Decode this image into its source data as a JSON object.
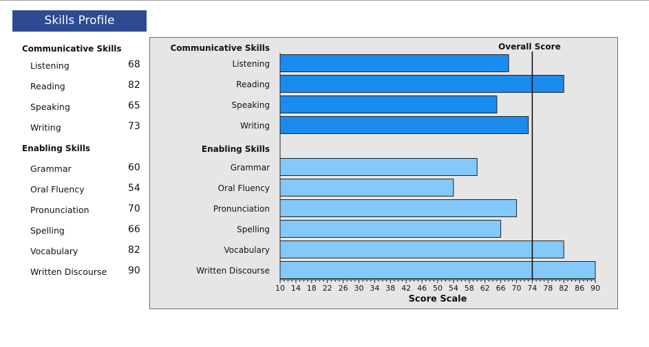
{
  "header": {
    "title": "Skills Profile"
  },
  "profile": {
    "sections": [
      {
        "title": "Communicative Skills",
        "items": [
          {
            "label": "Listening",
            "score": "68"
          },
          {
            "label": "Reading",
            "score": "82"
          },
          {
            "label": "Speaking",
            "score": "65"
          },
          {
            "label": "Writing",
            "score": "73"
          }
        ]
      },
      {
        "title": "Enabling Skills",
        "items": [
          {
            "label": "Grammar",
            "score": "60"
          },
          {
            "label": "Oral Fluency",
            "score": "54"
          },
          {
            "label": "Pronunciation",
            "score": "70"
          },
          {
            "label": "Spelling",
            "score": "66"
          },
          {
            "label": "Vocabulary",
            "score": "82"
          },
          {
            "label": "Written Discourse",
            "score": "90"
          }
        ]
      }
    ]
  },
  "colors": {
    "header_bg": "#2e4a93",
    "communicative_bar": "#1a8cf0",
    "enabling_bar": "#85c8fa",
    "panel_bg": "#e6e6e6"
  },
  "chart_data": {
    "type": "bar",
    "orientation": "horizontal",
    "groups": [
      {
        "title": "Communicative Skills",
        "categories": [
          "Listening",
          "Reading",
          "Speaking",
          "Writing"
        ],
        "values": [
          68,
          82,
          65,
          73
        ]
      },
      {
        "title": "Enabling Skills",
        "categories": [
          "Grammar",
          "Oral Fluency",
          "Pronunciation",
          "Spelling",
          "Vocabulary",
          "Written Discourse"
        ],
        "values": [
          60,
          54,
          70,
          66,
          82,
          90
        ]
      }
    ],
    "reference_line": {
      "label": "Overall Score",
      "value": 74
    },
    "xlabel": "Score Scale",
    "xlim": [
      10,
      90
    ],
    "xticks": [
      10,
      14,
      18,
      22,
      26,
      30,
      34,
      38,
      42,
      46,
      50,
      54,
      58,
      62,
      66,
      70,
      74,
      78,
      82,
      86,
      90
    ],
    "grid": false
  }
}
